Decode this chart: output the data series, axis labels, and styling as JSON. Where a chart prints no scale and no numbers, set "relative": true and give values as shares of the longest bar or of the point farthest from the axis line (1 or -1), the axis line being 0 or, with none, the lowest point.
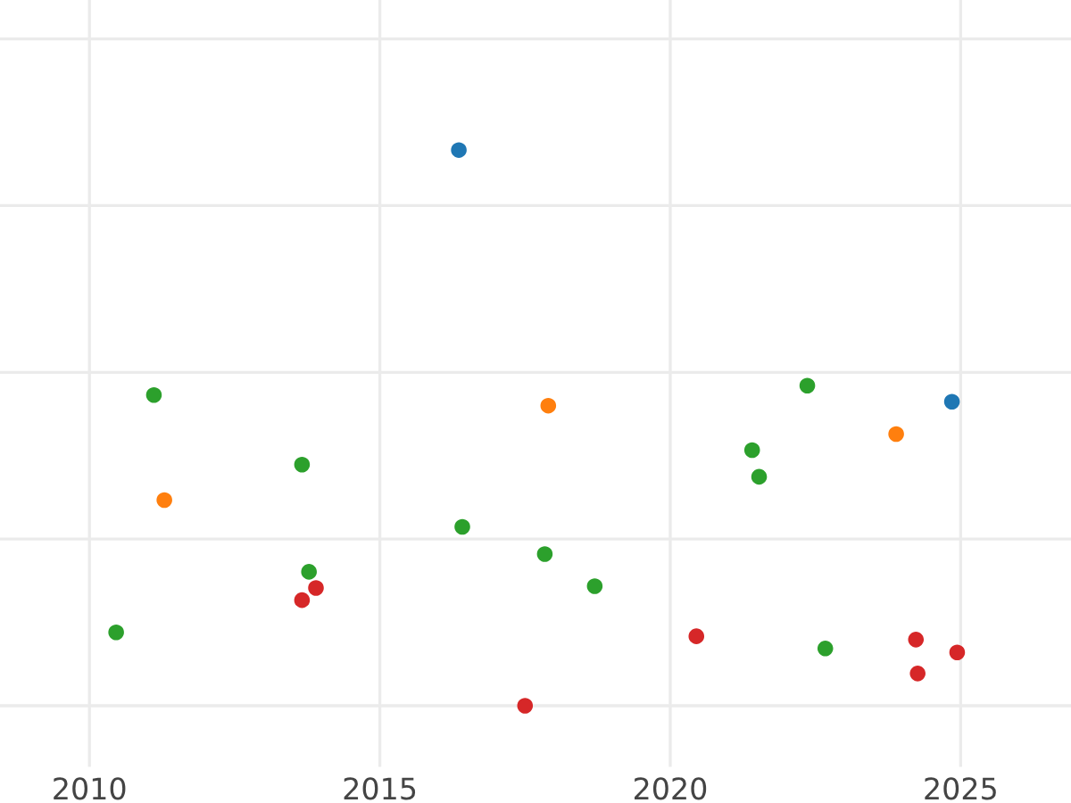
{
  "chart_data": {
    "type": "scatter",
    "relative": true,
    "xlim": [
      2008.46,
      2026.9
    ],
    "xticks": [
      2010,
      2015,
      2020,
      2025
    ],
    "grid": true,
    "marker": "circle",
    "tick_labels": "x",
    "series": [
      {
        "color": "#1f77b4",
        "x": [
          2016.36,
          2024.85
        ],
        "values": [
          1.0,
          0.547
        ]
      },
      {
        "color": "#ff7f0e",
        "x": [
          2011.29,
          2017.9,
          2023.89
        ],
        "values": [
          0.37,
          0.54,
          0.489
        ]
      },
      {
        "color": "#2ca02c",
        "x": [
          2011.11,
          2013.66,
          2010.46,
          2013.78,
          2016.42,
          2017.84,
          2018.7,
          2021.41,
          2021.53,
          2022.36,
          2022.67
        ],
        "values": [
          0.559,
          0.434,
          0.132,
          0.241,
          0.322,
          0.273,
          0.215,
          0.46,
          0.412,
          0.576,
          0.103
        ]
      },
      {
        "color": "#d62728",
        "x": [
          2013.66,
          2013.9,
          2017.5,
          2020.45,
          2024.23,
          2024.26,
          2024.94
        ],
        "values": [
          0.19,
          0.212,
          0.0,
          0.125,
          0.119,
          0.058,
          0.096
        ]
      }
    ]
  }
}
